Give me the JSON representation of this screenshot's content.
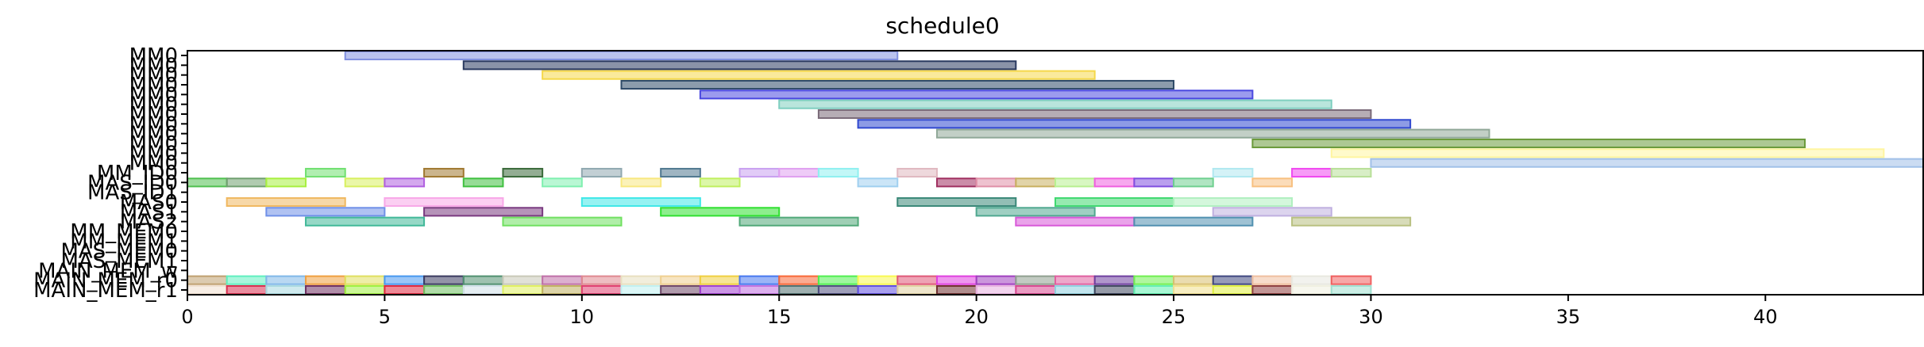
{
  "chart_data": {
    "type": "gantt",
    "title": "schedule0",
    "xlim": [
      0,
      44
    ],
    "x_ticks": [
      0,
      5,
      10,
      15,
      20,
      25,
      30,
      35,
      40
    ],
    "grid": false,
    "rows": [
      "MM0",
      "MM1",
      "MM2",
      "MM3",
      "MM4",
      "MM5",
      "MM6",
      "MM7",
      "MM8",
      "MM9",
      "MM10",
      "MM11",
      "MM_ID0",
      "MAS_ID0",
      "MAS_ID1",
      "MAS0",
      "MAS1",
      "MAS2",
      "MM_MEM0",
      "MM_MEM1",
      "MAS_MEM0",
      "MAS_MEM1",
      "MAIN_MEM_w",
      "MAIN_MEM_r0",
      "MAIN_MEM_r1"
    ],
    "row_labels_text": [
      "MM0",
      "MM0",
      "MM0",
      "MM0",
      "MM0",
      "MM0",
      "MM0",
      "MM0",
      "MM0",
      "MM0",
      "MM0",
      "MM0",
      "MM_ID0",
      "MAS_ID0",
      "MAS_ID1",
      "MAS0",
      "MAS1",
      "MAS2",
      "MM_MEM0",
      "MM_MEM1",
      "MAS_MEM0",
      "MAS_MEM1",
      "MAIN_MEM_w",
      "MAIN_MEM_r0",
      "MAIN_MEM_r1"
    ],
    "tasks": [
      {
        "row": "MM0",
        "start": 4,
        "end": 18,
        "color": "#8090e0"
      },
      {
        "row": "MM1",
        "start": 7,
        "end": 21,
        "color": "#2a3a60"
      },
      {
        "row": "MM2",
        "start": 9,
        "end": 23,
        "color": "#f5d84a"
      },
      {
        "row": "MM3",
        "start": 11,
        "end": 25,
        "color": "#2e4a68"
      },
      {
        "row": "MM4",
        "start": 13,
        "end": 27,
        "color": "#4a48e0"
      },
      {
        "row": "MM5",
        "start": 15,
        "end": 29,
        "color": "#7fcfc0"
      },
      {
        "row": "MM6",
        "start": 16,
        "end": 30,
        "color": "#7a6a78"
      },
      {
        "row": "MM7",
        "start": 17,
        "end": 31,
        "color": "#3048d0"
      },
      {
        "row": "MM8",
        "start": 19,
        "end": 33,
        "color": "#90a898"
      },
      {
        "row": "MM9",
        "start": 27,
        "end": 41,
        "color": "#6a9a3a"
      },
      {
        "row": "MM10",
        "start": 29,
        "end": 43,
        "color": "#fff5a0"
      },
      {
        "row": "MM11",
        "start": 30,
        "end": 44,
        "color": "#a0c0e8"
      },
      {
        "row": "MM_ID0",
        "start": 3,
        "end": 4,
        "color": "#70e070"
      },
      {
        "row": "MM_ID0",
        "start": 6,
        "end": 7,
        "color": "#a07830"
      },
      {
        "row": "MM_ID0",
        "start": 8,
        "end": 9,
        "color": "#3a6a3a"
      },
      {
        "row": "MM_ID0",
        "start": 10,
        "end": 11,
        "color": "#90a8b0"
      },
      {
        "row": "MM_ID0",
        "start": 12,
        "end": 13,
        "color": "#507890"
      },
      {
        "row": "MM_ID0",
        "start": 14,
        "end": 15,
        "color": "#c8a0f0"
      },
      {
        "row": "MM_ID0",
        "start": 15,
        "end": 16,
        "color": "#e0a0f0"
      },
      {
        "row": "MM_ID0",
        "start": 16,
        "end": 17,
        "color": "#90f0f0"
      },
      {
        "row": "MM_ID0",
        "start": 18,
        "end": 19,
        "color": "#e0b8c0"
      },
      {
        "row": "MM_ID0",
        "start": 26,
        "end": 27,
        "color": "#b0e8f0"
      },
      {
        "row": "MM_ID0",
        "start": 28,
        "end": 29,
        "color": "#f048f0"
      },
      {
        "row": "MM_ID0",
        "start": 29,
        "end": 30,
        "color": "#b8e098"
      },
      {
        "row": "MAS_ID0",
        "start": 0,
        "end": 1,
        "color": "#50c050"
      },
      {
        "row": "MAS_ID0",
        "start": 1,
        "end": 2,
        "color": "#70a070"
      },
      {
        "row": "MAS_ID0",
        "start": 2,
        "end": 3,
        "color": "#a8f040"
      },
      {
        "row": "MAS_ID0",
        "start": 4,
        "end": 5,
        "color": "#d8f060"
      },
      {
        "row": "MAS_ID0",
        "start": 5,
        "end": 6,
        "color": "#b060e0"
      },
      {
        "row": "MAS_ID0",
        "start": 7,
        "end": 8,
        "color": "#40c040"
      },
      {
        "row": "MAS_ID0",
        "start": 9,
        "end": 10,
        "color": "#80f0b0"
      },
      {
        "row": "MAS_ID0",
        "start": 11,
        "end": 12,
        "color": "#f8e880"
      },
      {
        "row": "MAS_ID0",
        "start": 13,
        "end": 14,
        "color": "#c0f060"
      },
      {
        "row": "MAS_ID0",
        "start": 17,
        "end": 18,
        "color": "#a0d0f0"
      },
      {
        "row": "MAS_ID0",
        "start": 19,
        "end": 20,
        "color": "#a03060"
      },
      {
        "row": "MAS_ID0",
        "start": 20,
        "end": 21,
        "color": "#e090a8"
      },
      {
        "row": "MAS_ID0",
        "start": 21,
        "end": 22,
        "color": "#c8b060"
      },
      {
        "row": "MAS_ID0",
        "start": 22,
        "end": 23,
        "color": "#b8f090"
      },
      {
        "row": "MAS_ID0",
        "start": 23,
        "end": 24,
        "color": "#f060e0"
      },
      {
        "row": "MAS_ID0",
        "start": 24,
        "end": 25,
        "color": "#8050e0"
      },
      {
        "row": "MAS_ID0",
        "start": 25,
        "end": 26,
        "color": "#70d090"
      },
      {
        "row": "MAS_ID0",
        "start": 27,
        "end": 28,
        "color": "#f8c080"
      },
      {
        "row": "MAS0",
        "start": 1,
        "end": 4,
        "color": "#f0b860"
      },
      {
        "row": "MAS0",
        "start": 5,
        "end": 8,
        "color": "#f8a8e8"
      },
      {
        "row": "MAS0",
        "start": 10,
        "end": 13,
        "color": "#40e8e8"
      },
      {
        "row": "MAS0",
        "start": 18,
        "end": 21,
        "color": "#3a8878"
      },
      {
        "row": "MAS0",
        "start": 22,
        "end": 25,
        "color": "#40d870"
      },
      {
        "row": "MAS0",
        "start": 25,
        "end": 28,
        "color": "#b0f0c0"
      },
      {
        "row": "MAS1",
        "start": 2,
        "end": 5,
        "color": "#7090e8"
      },
      {
        "row": "MAS1",
        "start": 6,
        "end": 9,
        "color": "#7a3a80"
      },
      {
        "row": "MAS1",
        "start": 12,
        "end": 15,
        "color": "#30e030"
      },
      {
        "row": "MAS1",
        "start": 20,
        "end": 23,
        "color": "#50a890"
      },
      {
        "row": "MAS1",
        "start": 26,
        "end": 29,
        "color": "#c0b0e0"
      },
      {
        "row": "MAS2",
        "start": 3,
        "end": 6,
        "color": "#40b898"
      },
      {
        "row": "MAS2",
        "start": 8,
        "end": 11,
        "color": "#70e060"
      },
      {
        "row": "MAS2",
        "start": 14,
        "end": 17,
        "color": "#50a878"
      },
      {
        "row": "MAS2",
        "start": 21,
        "end": 24,
        "color": "#d858d8"
      },
      {
        "row": "MAS2",
        "start": 24,
        "end": 27,
        "color": "#5090b0"
      },
      {
        "row": "MAS2",
        "start": 28,
        "end": 31,
        "color": "#b8c080"
      },
      {
        "row": "MAIN_MEM_r0",
        "start": 0,
        "end": 1,
        "color": "#c0a070"
      },
      {
        "row": "MAIN_MEM_r0",
        "start": 1,
        "end": 2,
        "color": "#60f0c0"
      },
      {
        "row": "MAIN_MEM_r0",
        "start": 2,
        "end": 3,
        "color": "#80b8e8"
      },
      {
        "row": "MAIN_MEM_r0",
        "start": 3,
        "end": 4,
        "color": "#f0a040"
      },
      {
        "row": "MAIN_MEM_r0",
        "start": 4,
        "end": 5,
        "color": "#e0e060"
      },
      {
        "row": "MAIN_MEM_r0",
        "start": 5,
        "end": 6,
        "color": "#4898f0"
      },
      {
        "row": "MAIN_MEM_r0",
        "start": 6,
        "end": 7,
        "color": "#3a3a60"
      },
      {
        "row": "MAIN_MEM_r0",
        "start": 7,
        "end": 8,
        "color": "#509070"
      },
      {
        "row": "MAIN_MEM_r0",
        "start": 8,
        "end": 9,
        "color": "#c8c8b8"
      },
      {
        "row": "MAIN_MEM_r0",
        "start": 9,
        "end": 10,
        "color": "#c070a8"
      },
      {
        "row": "MAIN_MEM_r0",
        "start": 10,
        "end": 11,
        "color": "#e08890"
      },
      {
        "row": "MAIN_MEM_r0",
        "start": 11,
        "end": 12,
        "color": "#e8e0c0"
      },
      {
        "row": "MAIN_MEM_r0",
        "start": 12,
        "end": 13,
        "color": "#f0d090"
      },
      {
        "row": "MAIN_MEM_r0",
        "start": 13,
        "end": 14,
        "color": "#f0d040"
      },
      {
        "row": "MAIN_MEM_r0",
        "start": 14,
        "end": 15,
        "color": "#4878f0"
      },
      {
        "row": "MAIN_MEM_r0",
        "start": 15,
        "end": 16,
        "color": "#f86838"
      },
      {
        "row": "MAIN_MEM_r0",
        "start": 16,
        "end": 17,
        "color": "#50f050"
      },
      {
        "row": "MAIN_MEM_r0",
        "start": 17,
        "end": 18,
        "color": "#f8f850"
      },
      {
        "row": "MAIN_MEM_r0",
        "start": 18,
        "end": 19,
        "color": "#e05878"
      },
      {
        "row": "MAIN_MEM_r0",
        "start": 19,
        "end": 20,
        "color": "#e040e0"
      },
      {
        "row": "MAIN_MEM_r0",
        "start": 20,
        "end": 21,
        "color": "#a040c0"
      },
      {
        "row": "MAIN_MEM_r0",
        "start": 21,
        "end": 22,
        "color": "#90a090"
      },
      {
        "row": "MAIN_MEM_r0",
        "start": 22,
        "end": 23,
        "color": "#e060a0"
      },
      {
        "row": "MAIN_MEM_r0",
        "start": 23,
        "end": 24,
        "color": "#7040a0"
      },
      {
        "row": "MAIN_MEM_r0",
        "start": 24,
        "end": 25,
        "color": "#70f050"
      },
      {
        "row": "MAIN_MEM_r0",
        "start": 25,
        "end": 26,
        "color": "#d8c070"
      },
      {
        "row": "MAIN_MEM_r0",
        "start": 26,
        "end": 27,
        "color": "#404880"
      },
      {
        "row": "MAIN_MEM_r0",
        "start": 27,
        "end": 28,
        "color": "#f0c0a0"
      },
      {
        "row": "MAIN_MEM_r0",
        "start": 28,
        "end": 29,
        "color": "#e8e8e0"
      },
      {
        "row": "MAIN_MEM_r0",
        "start": 29,
        "end": 30,
        "color": "#f06060"
      },
      {
        "row": "MAIN_MEM_r1",
        "start": 0,
        "end": 1,
        "color": "#f0e0d0"
      },
      {
        "row": "MAIN_MEM_r1",
        "start": 1,
        "end": 2,
        "color": "#d83050"
      },
      {
        "row": "MAIN_MEM_r1",
        "start": 2,
        "end": 3,
        "color": "#a8d8e0"
      },
      {
        "row": "MAIN_MEM_r1",
        "start": 3,
        "end": 4,
        "color": "#703060"
      },
      {
        "row": "MAIN_MEM_r1",
        "start": 4,
        "end": 5,
        "color": "#a0f040"
      },
      {
        "row": "MAIN_MEM_r1",
        "start": 5,
        "end": 6,
        "color": "#e02840"
      },
      {
        "row": "MAIN_MEM_r1",
        "start": 6,
        "end": 7,
        "color": "#70c060"
      },
      {
        "row": "MAIN_MEM_r1",
        "start": 7,
        "end": 8,
        "color": "#d0e0e8"
      },
      {
        "row": "MAIN_MEM_r1",
        "start": 8,
        "end": 9,
        "color": "#e0f060"
      },
      {
        "row": "MAIN_MEM_r1",
        "start": 9,
        "end": 10,
        "color": "#c0b060"
      },
      {
        "row": "MAIN_MEM_r1",
        "start": 10,
        "end": 11,
        "color": "#e04070"
      },
      {
        "row": "MAIN_MEM_r1",
        "start": 11,
        "end": 12,
        "color": "#c0f0f0"
      },
      {
        "row": "MAIN_MEM_r1",
        "start": 12,
        "end": 13,
        "color": "#704868"
      },
      {
        "row": "MAIN_MEM_r1",
        "start": 13,
        "end": 14,
        "color": "#a040d0"
      },
      {
        "row": "MAIN_MEM_r1",
        "start": 14,
        "end": 15,
        "color": "#c070e0"
      },
      {
        "row": "MAIN_MEM_r1",
        "start": 15,
        "end": 16,
        "color": "#507070"
      },
      {
        "row": "MAIN_MEM_r1",
        "start": 16,
        "end": 17,
        "color": "#505080"
      },
      {
        "row": "MAIN_MEM_r1",
        "start": 17,
        "end": 18,
        "color": "#6050e0"
      },
      {
        "row": "MAIN_MEM_r1",
        "start": 18,
        "end": 19,
        "color": "#e0d0a0"
      },
      {
        "row": "MAIN_MEM_r1",
        "start": 19,
        "end": 20,
        "color": "#703030"
      },
      {
        "row": "MAIN_MEM_r1",
        "start": 20,
        "end": 21,
        "color": "#e8b0e0"
      },
      {
        "row": "MAIN_MEM_r1",
        "start": 21,
        "end": 22,
        "color": "#d84890"
      },
      {
        "row": "MAIN_MEM_r1",
        "start": 22,
        "end": 23,
        "color": "#90d0e0"
      },
      {
        "row": "MAIN_MEM_r1",
        "start": 23,
        "end": 24,
        "color": "#404860"
      },
      {
        "row": "MAIN_MEM_r1",
        "start": 24,
        "end": 25,
        "color": "#60f0b0"
      },
      {
        "row": "MAIN_MEM_r1",
        "start": 25,
        "end": 26,
        "color": "#f0e090"
      },
      {
        "row": "MAIN_MEM_r1",
        "start": 26,
        "end": 27,
        "color": "#e0f040"
      },
      {
        "row": "MAIN_MEM_r1",
        "start": 27,
        "end": 28,
        "color": "#904040"
      },
      {
        "row": "MAIN_MEM_r1",
        "start": 28,
        "end": 29,
        "color": "#f0f0e0"
      },
      {
        "row": "MAIN_MEM_r1",
        "start": 29,
        "end": 30,
        "color": "#a0e0d0"
      }
    ]
  }
}
